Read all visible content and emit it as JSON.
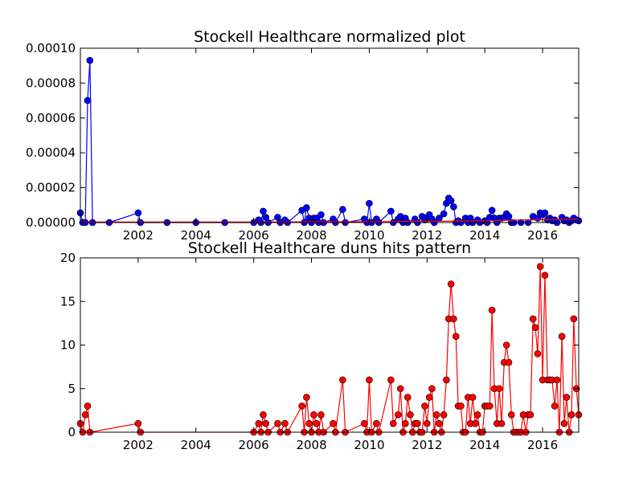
{
  "chart_data": [
    {
      "type": "line",
      "title": "Stockell Healthcare normalized plot",
      "xlabel": "",
      "ylabel": "",
      "xlim": [
        2000.0,
        2017.25
      ],
      "ylim": [
        0,
        0.0001
      ],
      "x_ticks": [
        2002,
        2004,
        2006,
        2008,
        2010,
        2012,
        2014,
        2016
      ],
      "y_ticks": [
        0.0,
        2e-05,
        4e-05,
        6e-05,
        8e-05,
        0.0001
      ],
      "y_tick_labels": [
        "0.00000",
        "0.00002",
        "0.00004",
        "0.00006",
        "0.00008",
        "0.00010"
      ],
      "grid": false,
      "series": [
        {
          "color": "#0000ff",
          "marker": "circle",
          "points": [
            [
              2000.0,
              5.5e-06
            ],
            [
              2000.08,
              0.0
            ],
            [
              2000.17,
              0.0
            ],
            [
              2000.25,
              7e-05
            ],
            [
              2000.33,
              9.3e-05
            ],
            [
              2000.42,
              0.0
            ],
            [
              2001.0,
              0.0
            ],
            [
              2002.0,
              5.5e-06
            ],
            [
              2002.08,
              0.0
            ],
            [
              2003.0,
              0.0
            ],
            [
              2004.0,
              0.0
            ],
            [
              2005.0,
              0.0
            ],
            [
              2006.0,
              0.0
            ],
            [
              2006.17,
              1.5e-06
            ],
            [
              2006.25,
              0.0
            ],
            [
              2006.33,
              6.5e-06
            ],
            [
              2006.42,
              3e-06
            ],
            [
              2006.5,
              0.0
            ],
            [
              2006.83,
              3e-06
            ],
            [
              2006.92,
              0.0
            ],
            [
              2007.08,
              1.5e-06
            ],
            [
              2007.17,
              0.0
            ],
            [
              2007.67,
              7e-06
            ],
            [
              2007.75,
              0.0
            ],
            [
              2007.83,
              8.5e-06
            ],
            [
              2007.92,
              2.5e-06
            ],
            [
              2008.0,
              0.0
            ],
            [
              2008.08,
              2.5e-06
            ],
            [
              2008.17,
              2.5e-06
            ],
            [
              2008.25,
              0.0
            ],
            [
              2008.33,
              4.5e-06
            ],
            [
              2008.42,
              0.0
            ],
            [
              2008.75,
              2e-06
            ],
            [
              2008.83,
              0.0
            ],
            [
              2009.08,
              7.5e-06
            ],
            [
              2009.17,
              0.0
            ],
            [
              2009.83,
              2e-06
            ],
            [
              2009.92,
              0.0
            ],
            [
              2010.0,
              1.1e-05
            ],
            [
              2010.08,
              0.0
            ],
            [
              2010.25,
              2e-06
            ],
            [
              2010.33,
              0.0
            ],
            [
              2010.75,
              6.5e-06
            ],
            [
              2010.83,
              0.0
            ],
            [
              2011.0,
              2e-06
            ],
            [
              2011.08,
              3.5e-06
            ],
            [
              2011.17,
              0.0
            ],
            [
              2011.25,
              2.5e-06
            ],
            [
              2011.33,
              0.0
            ],
            [
              2011.58,
              2e-06
            ],
            [
              2011.67,
              0.0
            ],
            [
              2011.83,
              3.5e-06
            ],
            [
              2011.92,
              1.5e-06
            ],
            [
              2012.0,
              3e-06
            ],
            [
              2012.08,
              4.5e-06
            ],
            [
              2012.17,
              2e-06
            ],
            [
              2012.25,
              0.0
            ],
            [
              2012.42,
              2.5e-06
            ],
            [
              2012.58,
              5e-06
            ],
            [
              2012.67,
              1.1e-05
            ],
            [
              2012.75,
              1.4e-05
            ],
            [
              2012.83,
              1.25e-05
            ],
            [
              2012.92,
              9e-06
            ],
            [
              2013.0,
              0.0
            ],
            [
              2013.08,
              1e-06
            ],
            [
              2013.17,
              0.0
            ],
            [
              2013.33,
              2.5e-06
            ],
            [
              2013.42,
              0.0
            ],
            [
              2013.5,
              2.5e-06
            ],
            [
              2013.58,
              0.0
            ],
            [
              2013.75,
              1.5e-06
            ],
            [
              2013.83,
              0.0
            ],
            [
              2014.0,
              1e-06
            ],
            [
              2014.08,
              0.0
            ],
            [
              2014.17,
              3e-06
            ],
            [
              2014.25,
              7e-06
            ],
            [
              2014.33,
              2.5e-06
            ],
            [
              2014.42,
              0.0
            ],
            [
              2014.5,
              2.5e-06
            ],
            [
              2014.58,
              2.5e-06
            ],
            [
              2014.67,
              3e-06
            ],
            [
              2014.75,
              5e-06
            ],
            [
              2014.83,
              3.5e-06
            ],
            [
              2014.92,
              0.0
            ],
            [
              2015.0,
              0.0
            ],
            [
              2015.25,
              0.0
            ],
            [
              2015.5,
              0.0
            ],
            [
              2015.67,
              3.5e-06
            ],
            [
              2015.83,
              2.5e-06
            ],
            [
              2015.92,
              5.5e-06
            ],
            [
              2016.0,
              4.5e-06
            ],
            [
              2016.08,
              5.5e-06
            ],
            [
              2016.17,
              1.5e-06
            ],
            [
              2016.25,
              2.5e-06
            ],
            [
              2016.33,
              1e-06
            ],
            [
              2016.42,
              1.5e-06
            ],
            [
              2016.5,
              0.0
            ],
            [
              2016.67,
              3e-06
            ],
            [
              2016.75,
              1e-06
            ],
            [
              2016.83,
              1.5e-06
            ],
            [
              2016.92,
              0.0
            ],
            [
              2017.0,
              1e-06
            ],
            [
              2017.08,
              2.5e-06
            ],
            [
              2017.17,
              1.5e-06
            ],
            [
              2017.25,
              1e-06
            ]
          ]
        },
        {
          "color": "#ff0000",
          "marker": "none",
          "points": [
            [
              2000.0,
              3e-07
            ],
            [
              2006.0,
              3e-07
            ],
            [
              2010.0,
              5e-07
            ],
            [
              2013.0,
              8e-07
            ],
            [
              2015.5,
              1.5e-06
            ],
            [
              2017.25,
              2e-06
            ]
          ]
        }
      ]
    },
    {
      "type": "line",
      "title": "Stockell Healthcare duns hits pattern",
      "xlabel": "",
      "ylabel": "",
      "xlim": [
        2000.0,
        2017.25
      ],
      "ylim": [
        0,
        20
      ],
      "x_ticks": [
        2002,
        2004,
        2006,
        2008,
        2010,
        2012,
        2014,
        2016
      ],
      "y_ticks": [
        0,
        5,
        10,
        15,
        20
      ],
      "y_tick_labels": [
        "0",
        "5",
        "10",
        "15",
        "20"
      ],
      "grid": false,
      "series": [
        {
          "color": "#ff0000",
          "marker": "circle",
          "points": [
            [
              2000.0,
              1
            ],
            [
              2000.08,
              0
            ],
            [
              2000.17,
              2
            ],
            [
              2000.25,
              3
            ],
            [
              2000.33,
              0
            ],
            [
              2002.0,
              1
            ],
            [
              2002.08,
              0
            ],
            [
              2006.0,
              0
            ],
            [
              2006.17,
              1
            ],
            [
              2006.25,
              0
            ],
            [
              2006.33,
              2
            ],
            [
              2006.42,
              1
            ],
            [
              2006.5,
              0
            ],
            [
              2006.83,
              1
            ],
            [
              2006.92,
              0
            ],
            [
              2007.08,
              1
            ],
            [
              2007.17,
              0
            ],
            [
              2007.67,
              3
            ],
            [
              2007.75,
              0
            ],
            [
              2007.83,
              4
            ],
            [
              2007.92,
              1
            ],
            [
              2008.0,
              0
            ],
            [
              2008.08,
              2
            ],
            [
              2008.17,
              1
            ],
            [
              2008.25,
              0
            ],
            [
              2008.33,
              2
            ],
            [
              2008.42,
              0
            ],
            [
              2008.75,
              1
            ],
            [
              2008.83,
              0
            ],
            [
              2009.08,
              6
            ],
            [
              2009.17,
              0
            ],
            [
              2009.83,
              1
            ],
            [
              2009.92,
              0
            ],
            [
              2010.0,
              6
            ],
            [
              2010.08,
              0
            ],
            [
              2010.25,
              1
            ],
            [
              2010.33,
              0
            ],
            [
              2010.75,
              6
            ],
            [
              2010.83,
              1
            ],
            [
              2011.0,
              2
            ],
            [
              2011.08,
              5
            ],
            [
              2011.17,
              0
            ],
            [
              2011.25,
              1
            ],
            [
              2011.33,
              4
            ],
            [
              2011.42,
              2
            ],
            [
              2011.5,
              0
            ],
            [
              2011.58,
              1
            ],
            [
              2011.67,
              1
            ],
            [
              2011.75,
              0
            ],
            [
              2011.83,
              0
            ],
            [
              2011.92,
              3
            ],
            [
              2012.0,
              1
            ],
            [
              2012.08,
              4
            ],
            [
              2012.17,
              5
            ],
            [
              2012.25,
              0
            ],
            [
              2012.33,
              2
            ],
            [
              2012.42,
              1
            ],
            [
              2012.5,
              0
            ],
            [
              2012.58,
              2
            ],
            [
              2012.67,
              6
            ],
            [
              2012.75,
              13
            ],
            [
              2012.83,
              17
            ],
            [
              2012.92,
              13
            ],
            [
              2013.0,
              11
            ],
            [
              2013.08,
              3
            ],
            [
              2013.17,
              3
            ],
            [
              2013.25,
              0
            ],
            [
              2013.33,
              0
            ],
            [
              2013.42,
              4
            ],
            [
              2013.5,
              1
            ],
            [
              2013.58,
              4
            ],
            [
              2013.67,
              1
            ],
            [
              2013.75,
              2
            ],
            [
              2013.83,
              0
            ],
            [
              2013.92,
              0
            ],
            [
              2014.0,
              3
            ],
            [
              2014.08,
              3
            ],
            [
              2014.17,
              3
            ],
            [
              2014.25,
              14
            ],
            [
              2014.33,
              5
            ],
            [
              2014.42,
              1
            ],
            [
              2014.5,
              5
            ],
            [
              2014.58,
              1
            ],
            [
              2014.67,
              8
            ],
            [
              2014.75,
              10
            ],
            [
              2014.83,
              8
            ],
            [
              2014.92,
              2
            ],
            [
              2015.0,
              0
            ],
            [
              2015.08,
              0
            ],
            [
              2015.17,
              0
            ],
            [
              2015.25,
              0
            ],
            [
              2015.33,
              2
            ],
            [
              2015.42,
              0
            ],
            [
              2015.5,
              2
            ],
            [
              2015.58,
              2
            ],
            [
              2015.67,
              13
            ],
            [
              2015.75,
              12
            ],
            [
              2015.83,
              9
            ],
            [
              2015.92,
              19
            ],
            [
              2016.0,
              6
            ],
            [
              2016.08,
              18
            ],
            [
              2016.17,
              6
            ],
            [
              2016.25,
              6
            ],
            [
              2016.33,
              6
            ],
            [
              2016.42,
              3
            ],
            [
              2016.5,
              6
            ],
            [
              2016.58,
              0
            ],
            [
              2016.67,
              11
            ],
            [
              2016.75,
              1
            ],
            [
              2016.83,
              4
            ],
            [
              2016.92,
              0
            ],
            [
              2017.0,
              2
            ],
            [
              2017.08,
              13
            ],
            [
              2017.17,
              5
            ],
            [
              2017.25,
              2
            ]
          ]
        }
      ]
    }
  ]
}
